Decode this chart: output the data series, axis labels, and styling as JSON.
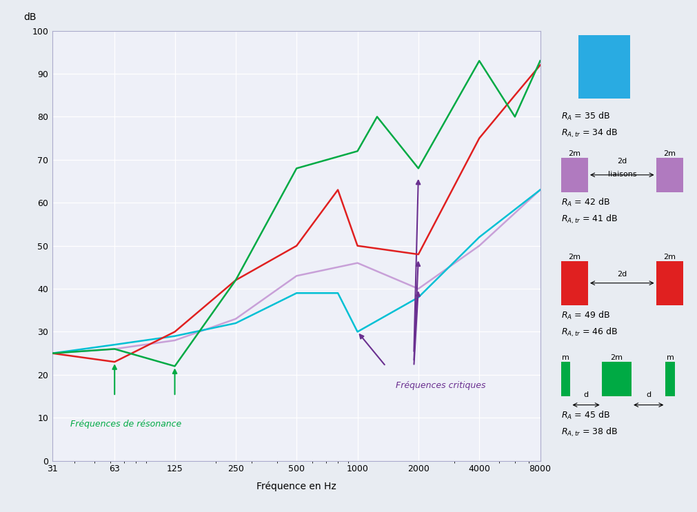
{
  "background_color": "#e8ecf2",
  "plot_bg_color": "#eef0f8",
  "grid_color": "#ffffff",
  "xlabel": "Fréquence en Hz",
  "ylabel": "dB",
  "ylim": [
    0,
    100
  ],
  "yticks": [
    0,
    10,
    20,
    30,
    40,
    50,
    60,
    70,
    80,
    90,
    100
  ],
  "xtick_labels": [
    "31",
    "63",
    "125",
    "250",
    "500",
    "1000",
    "2000",
    "4000",
    "8000"
  ],
  "xtick_positions": [
    31,
    63,
    125,
    250,
    500,
    1000,
    2000,
    4000,
    8000
  ],
  "curve_cyan": {
    "color": "#00c0d4",
    "x": [
      31,
      63,
      125,
      250,
      500,
      800,
      1000,
      2000,
      4000,
      8000
    ],
    "y": [
      25,
      27,
      29,
      32,
      39,
      39,
      30,
      38,
      52,
      63
    ]
  },
  "curve_lavender": {
    "color": "#c8a0d8",
    "x": [
      31,
      63,
      125,
      250,
      500,
      1000,
      2000,
      4000,
      8000
    ],
    "y": [
      25,
      26,
      28,
      33,
      43,
      46,
      40,
      50,
      63
    ]
  },
  "curve_red": {
    "color": "#e02020",
    "x": [
      31,
      63,
      125,
      250,
      500,
      800,
      1000,
      2000,
      4000,
      6000,
      8000
    ],
    "y": [
      25,
      23,
      30,
      42,
      50,
      63,
      50,
      48,
      75,
      85,
      92
    ]
  },
  "curve_green": {
    "color": "#00aa44",
    "x": [
      31,
      63,
      125,
      250,
      500,
      1000,
      1250,
      2000,
      4000,
      6000,
      8000
    ],
    "y": [
      25,
      26,
      22,
      42,
      68,
      72,
      80,
      68,
      93,
      80,
      93
    ]
  },
  "purple": "#6a3090",
  "green_ann": "#00aa44",
  "legend_cyan_color": "#29abe2",
  "legend_purple_color": "#b07abf",
  "legend_red_color": "#e02020",
  "legend_green_color": "#00aa44"
}
